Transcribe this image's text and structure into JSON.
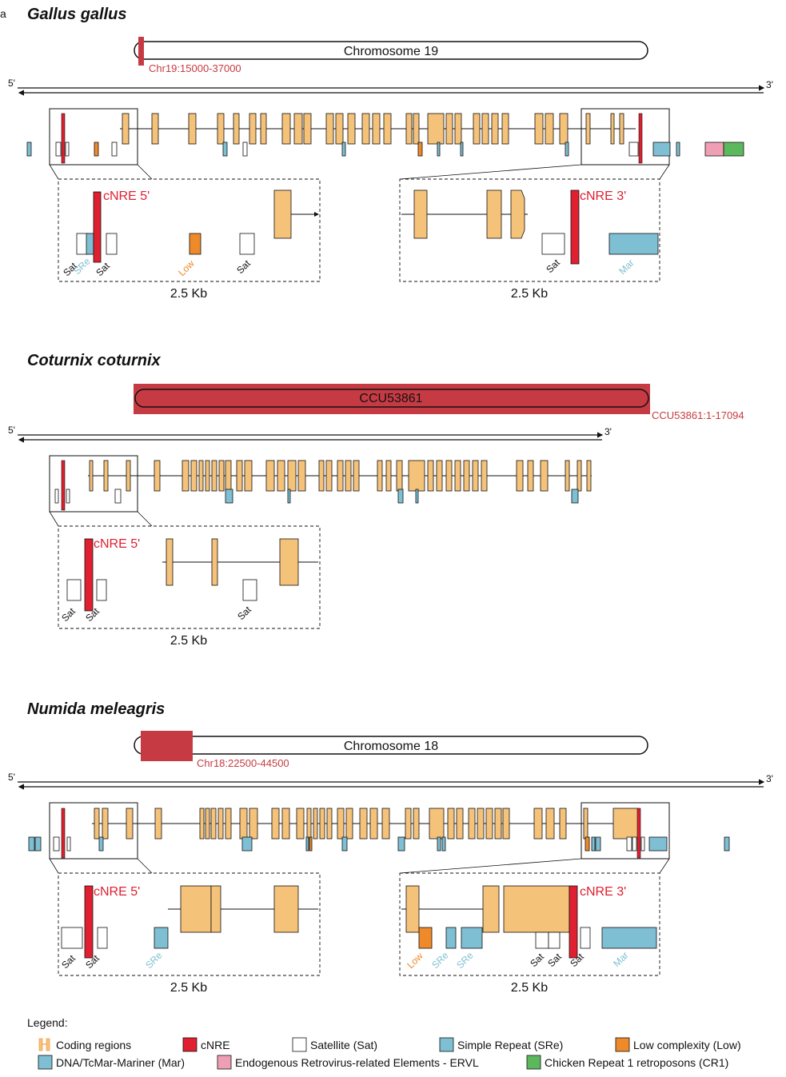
{
  "panel_letter": "a",
  "panels": [
    {
      "species": "Gallus gallus",
      "chromosome": "Chromosome 19",
      "coord": "Chr19:15000-37000",
      "end5": "5'",
      "end3": "3'",
      "insets": [
        {
          "cnre": "cNRE 5'",
          "scale": "2.5 Kb",
          "labels": [
            {
              "t": "Sat",
              "type": "sat"
            },
            {
              "t": "SRe",
              "type": "sre"
            },
            {
              "t": "Sat",
              "type": "sat"
            },
            {
              "t": "Low",
              "type": "low"
            },
            {
              "t": "Sat",
              "type": "sat"
            }
          ]
        },
        {
          "cnre": "cNRE 3'",
          "scale": "2.5 Kb",
          "labels": [
            {
              "t": "Sat",
              "type": "sat"
            },
            {
              "t": "Mar",
              "type": "mar"
            }
          ]
        }
      ]
    },
    {
      "species": "Coturnix coturnix",
      "chromosome": "CCU53861",
      "coord": "CCU53861:1-17094",
      "end5": "5'",
      "end3": "3'",
      "insets": [
        {
          "cnre": "cNRE 5'",
          "scale": "2.5 Kb",
          "labels": [
            {
              "t": "Sat",
              "type": "sat"
            },
            {
              "t": "Sat",
              "type": "sat"
            },
            {
              "t": "Sat",
              "type": "sat"
            }
          ]
        }
      ]
    },
    {
      "species": "Numida meleagris",
      "chromosome": "Chromosome 18",
      "coord": "Chr18:22500-44500",
      "end5": "5'",
      "end3": "3'",
      "insets": [
        {
          "cnre": "cNRE 5'",
          "scale": "2.5 Kb",
          "labels": [
            {
              "t": "Sat",
              "type": "sat"
            },
            {
              "t": "Sat",
              "type": "sat"
            },
            {
              "t": "SRe",
              "type": "sre"
            }
          ]
        },
        {
          "cnre": "cNRE 3'",
          "scale": "2.5 Kb",
          "labels": [
            {
              "t": "Low",
              "type": "low"
            },
            {
              "t": "SRe",
              "type": "sre"
            },
            {
              "t": "SRe",
              "type": "sre"
            },
            {
              "t": "Sat",
              "type": "sat"
            },
            {
              "t": "Sat",
              "type": "sat"
            },
            {
              "t": "Sat",
              "type": "sat"
            },
            {
              "t": "Mar",
              "type": "mar"
            }
          ]
        }
      ]
    }
  ],
  "legend": {
    "title": "Legend:",
    "items": [
      {
        "type": "coding",
        "label": "Coding regions"
      },
      {
        "type": "cnre",
        "label": "cNRE"
      },
      {
        "type": "sat",
        "label": "Satellite (Sat)"
      },
      {
        "type": "sre",
        "label": "Simple Repeat (SRe)"
      },
      {
        "type": "low",
        "label": "Low complexity (Low)"
      },
      {
        "type": "mar",
        "label": "DNA/TcMar-Mariner (Mar)"
      },
      {
        "type": "ervl",
        "label": "Endogenous Retrovirus-related Elements - ERVL"
      },
      {
        "type": "cr1",
        "label": "Chicken Repeat 1 retroposons (CR1)"
      }
    ]
  },
  "colors": {
    "coding": "#f5c27a",
    "cnre": "#e02030",
    "sat": "#ffffff",
    "sre": "#7fbfd3",
    "low": "#ee8a2a",
    "mar": "#7fbfd3",
    "ervl": "#ef9fb4",
    "cr1": "#5cb85c",
    "highlight": "#c63b43"
  }
}
